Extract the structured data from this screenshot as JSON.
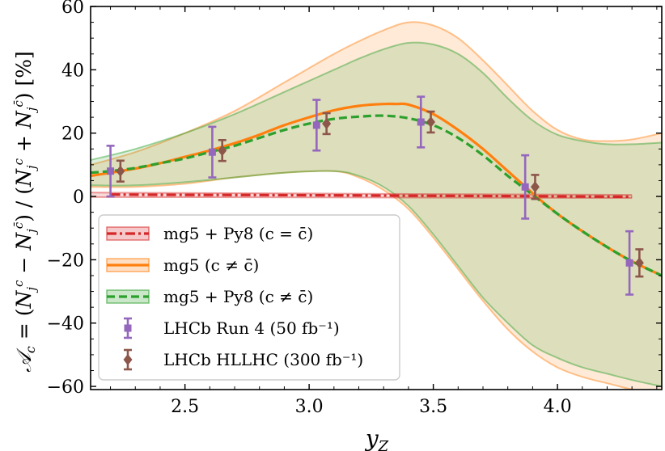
{
  "chart_data": {
    "type": "line",
    "xlabel": "y_Z",
    "ylabel": "A_c = (N_j^c − N_j^c̄) / (N_j^c + N_j^c̄)  [%]",
    "xlim": [
      2.12,
      4.42
    ],
    "ylim": [
      -61,
      60
    ],
    "xticks": [
      2.5,
      3.0,
      3.5,
      4.0
    ],
    "yticks": [
      -60,
      -40,
      -20,
      0,
      20,
      40,
      60
    ],
    "xtick_labels": [
      "2.5",
      "3.0",
      "3.5",
      "4.0"
    ],
    "ytick_labels": [
      "−60",
      "−40",
      "−20",
      "0",
      "20",
      "40",
      "60"
    ],
    "legend_position": "lower-left",
    "colors": {
      "red": "#d62728",
      "orange": "#ff7f0e",
      "green": "#2ca02c",
      "purple": "#9467bd",
      "brown": "#8c564b"
    },
    "bands": [
      {
        "name": "mg5 (c ≠ c̄)",
        "color": "#ff7f0e",
        "x": [
          2.12,
          2.3,
          2.5,
          2.7,
          2.9,
          3.1,
          3.2,
          3.3,
          3.4,
          3.5,
          3.6,
          3.7,
          3.8,
          3.9,
          4.0,
          4.1,
          4.2,
          4.3,
          4.42
        ],
        "upper": [
          10,
          14,
          20,
          27,
          36,
          45,
          49,
          52.5,
          55,
          54,
          50,
          43,
          35,
          27,
          21,
          18,
          17.5,
          18,
          20
        ],
        "lower": [
          3,
          3,
          4,
          6,
          7.5,
          8,
          6,
          2,
          -4,
          -13,
          -23,
          -33,
          -42,
          -49,
          -54,
          -57,
          -59,
          -61,
          -63
        ]
      },
      {
        "name": "mg5 + Py8 (c ≠ c̄)",
        "color": "#2ca02c",
        "x": [
          2.12,
          2.3,
          2.5,
          2.7,
          2.9,
          3.1,
          3.2,
          3.3,
          3.4,
          3.5,
          3.6,
          3.7,
          3.8,
          3.9,
          4.0,
          4.1,
          4.2,
          4.3,
          4.42
        ],
        "upper": [
          11.5,
          15,
          20,
          26,
          33,
          40,
          43.5,
          46.5,
          48.5,
          48,
          45,
          39,
          31,
          24,
          19.5,
          17.5,
          16.5,
          16.5,
          17
        ],
        "lower": [
          3.5,
          3.5,
          4.5,
          6,
          7.5,
          8,
          6.5,
          3,
          -3,
          -12,
          -22,
          -32,
          -40,
          -47,
          -51,
          -54,
          -56,
          -58,
          -60
        ]
      },
      {
        "name": "mg5 + Py8 (c = c̄)",
        "color": "#d62728",
        "x": [
          2.12,
          4.3
        ],
        "upper": [
          1.2,
          0.5
        ],
        "lower": [
          -0.2,
          -0.5
        ]
      }
    ],
    "series": [
      {
        "name": "mg5 + Py8 (c = c̄)",
        "style": "dashdot",
        "color": "#d62728",
        "x": [
          2.2,
          2.5,
          2.8,
          3.1,
          3.4,
          3.7,
          4.0,
          4.3
        ],
        "y": [
          0.6,
          0.5,
          0.45,
          0.35,
          0.25,
          0.15,
          0.0,
          -0.1
        ]
      },
      {
        "name": "mg5 (c ≠ c̄)",
        "style": "solid",
        "color": "#ff7f0e",
        "x": [
          2.12,
          2.2,
          2.3,
          2.4,
          2.5,
          2.6,
          2.7,
          2.8,
          2.9,
          3.0,
          3.1,
          3.2,
          3.3,
          3.35,
          3.4,
          3.5,
          3.6,
          3.7,
          3.8,
          3.9,
          4.0,
          4.1,
          4.2,
          4.3,
          4.42
        ],
        "y": [
          6.5,
          7.5,
          8.8,
          10.5,
          12.5,
          14.5,
          16.8,
          19.5,
          22.5,
          25,
          27.2,
          28.6,
          29.2,
          29.2,
          29,
          26,
          21,
          15,
          8,
          1,
          -5.5,
          -11,
          -16,
          -20.5,
          -25
        ]
      },
      {
        "name": "mg5 + Py8 (c ≠ c̄)",
        "style": "dashed",
        "color": "#2ca02c",
        "x": [
          2.12,
          2.2,
          2.3,
          2.4,
          2.5,
          2.6,
          2.7,
          2.8,
          2.9,
          3.0,
          3.1,
          3.2,
          3.3,
          3.4,
          3.5,
          3.6,
          3.7,
          3.8,
          3.9,
          4.0,
          4.1,
          4.2,
          4.3,
          4.42
        ],
        "y": [
          7.5,
          8,
          9,
          10.5,
          12,
          14,
          16,
          18.5,
          21,
          23,
          24.5,
          25.2,
          25.5,
          24.7,
          22.5,
          18.5,
          13,
          6.5,
          0.5,
          -5.5,
          -11,
          -16,
          -20.5,
          -25
        ]
      }
    ],
    "errorbars": [
      {
        "name": "LHCb Run 4 (50 fb⁻¹)",
        "color": "#9467bd",
        "marker": "square",
        "x": [
          2.2,
          2.61,
          3.03,
          3.45,
          3.87,
          4.29
        ],
        "y": [
          8,
          14,
          22.5,
          23.5,
          3,
          -21
        ],
        "err": [
          8,
          8,
          8,
          8,
          10,
          10
        ]
      },
      {
        "name": "LHCb HLLHC (300 fb⁻¹)",
        "color": "#8c564b",
        "marker": "diamond",
        "x": [
          2.24,
          2.65,
          3.07,
          3.49,
          3.91,
          4.33
        ],
        "y": [
          8,
          14.5,
          23,
          23.5,
          3,
          -21
        ],
        "err": [
          3.3,
          3.3,
          3.3,
          3.3,
          3.8,
          4.3
        ]
      }
    ],
    "legend": [
      {
        "label": "mg5 + Py8 (c = c̄)",
        "kind": "line-band",
        "color": "#d62728",
        "style": "dashdot"
      },
      {
        "label": "mg5 (c ≠ c̄)",
        "kind": "line-band",
        "color": "#ff7f0e",
        "style": "solid"
      },
      {
        "label": "mg5 + Py8 (c ≠ c̄)",
        "kind": "line-band",
        "color": "#2ca02c",
        "style": "dashed"
      },
      {
        "label": "LHCb Run 4 (50 fb⁻¹)",
        "kind": "errorbar",
        "color": "#9467bd",
        "marker": "square"
      },
      {
        "label": "LHCb HLLHC (300 fb⁻¹)",
        "kind": "errorbar",
        "color": "#8c564b",
        "marker": "diamond"
      }
    ]
  }
}
